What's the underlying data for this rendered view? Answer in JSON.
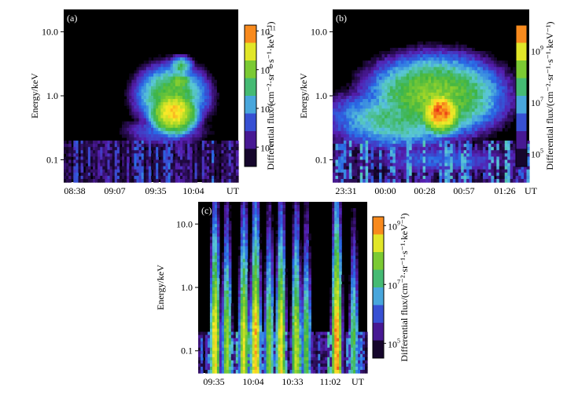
{
  "chart_data": [
    {
      "type": "heatmap",
      "panel_label": "(a)",
      "ylabel": "Energy/keV",
      "y_ticks": [
        "0.1",
        "1.0",
        "10.0"
      ],
      "y_tick_values": [
        0.1,
        1.0,
        10.0
      ],
      "ylim_log10": [
        -1.35,
        1.35
      ],
      "x_ticks": [
        "08:38",
        "09:07",
        "09:35",
        "10:04"
      ],
      "x_unit": "UT",
      "colorbar_label": "Differential flux/(cm⁻²·sr⁻¹·s⁻¹·keV⁻¹)",
      "colorbar_ticks": [
        {
          "base": "10",
          "exp": "5"
        },
        {
          "base": "10",
          "exp": "7"
        },
        {
          "base": "10",
          "exp": "9"
        },
        {
          "base": "10",
          "exp": "11"
        }
      ],
      "colorbar_range_log10": [
        4,
        11.3
      ],
      "features": [
        {
          "kind": "blob",
          "x_frac": 0.63,
          "y_log10": -0.25,
          "sx": 0.1,
          "sy": 0.26,
          "peak": 10.4
        },
        {
          "kind": "blob",
          "x_frac": 0.62,
          "y_log10": 0.0,
          "sx": 0.16,
          "sy": 0.38,
          "peak": 8.8
        },
        {
          "kind": "blob",
          "x_frac": 0.66,
          "y_log10": 0.22,
          "sx": 0.07,
          "sy": 0.12,
          "peak": 9.2
        },
        {
          "kind": "blob",
          "x_frac": 0.67,
          "y_log10": 0.45,
          "sx": 0.06,
          "sy": 0.14,
          "peak": 8.2
        },
        {
          "kind": "blob",
          "x_frac": 0.58,
          "y_log10": -0.55,
          "sx": 0.22,
          "sy": 0.22,
          "peak": 6.6
        }
      ]
    },
    {
      "type": "heatmap",
      "panel_label": "(b)",
      "ylabel": "Energy/keV",
      "y_ticks": [
        "0.1",
        "1.0",
        "10.0"
      ],
      "y_tick_values": [
        0.1,
        1.0,
        10.0
      ],
      "ylim_log10": [
        -1.35,
        1.35
      ],
      "x_ticks": [
        "23:31",
        "00:00",
        "00:28",
        "00:57",
        "01:26"
      ],
      "x_unit": "UT",
      "colorbar_label": "Differential flux/(cm⁻²·sr⁻¹·s⁻¹·keV⁻¹)",
      "colorbar_ticks": [
        {
          "base": "10",
          "exp": "5"
        },
        {
          "base": "10",
          "exp": "7"
        },
        {
          "base": "10",
          "exp": "9"
        }
      ],
      "colorbar_range_log10": [
        4.5,
        10
      ],
      "features": [
        {
          "kind": "blob",
          "x_frac": 0.55,
          "y_log10": -0.25,
          "sx": 0.09,
          "sy": 0.28,
          "peak": 9.8
        },
        {
          "kind": "blob",
          "x_frac": 0.52,
          "y_log10": 0.0,
          "sx": 0.3,
          "sy": 0.55,
          "peak": 8.4
        },
        {
          "kind": "blob",
          "x_frac": 0.35,
          "y_log10": -0.35,
          "sx": 0.35,
          "sy": 0.45,
          "peak": 7.6
        },
        {
          "kind": "blob",
          "x_frac": 0.55,
          "y_log10": -1.0,
          "sx": 0.4,
          "sy": 0.25,
          "peak": 6.4
        }
      ]
    },
    {
      "type": "heatmap",
      "panel_label": "(c)",
      "ylabel": "Energy/keV",
      "y_ticks": [
        "0.1",
        "1.0",
        "10.0"
      ],
      "y_tick_values": [
        0.1,
        1.0,
        10.0
      ],
      "ylim_log10": [
        -1.35,
        1.35
      ],
      "x_ticks": [
        "09:35",
        "10:04",
        "10:33",
        "11:02"
      ],
      "x_unit": "UT",
      "colorbar_label": "Differential flux/(cm⁻²·sr⁻¹·s⁻¹·keV⁻¹)",
      "colorbar_ticks": [
        {
          "base": "10",
          "exp": "5"
        },
        {
          "base": "10",
          "exp": "7"
        },
        {
          "base": "10",
          "exp": "9"
        }
      ],
      "colorbar_range_log10": [
        4.5,
        9.3
      ],
      "features": [
        {
          "kind": "spike",
          "x_frac": 0.1,
          "peak": 8.6
        },
        {
          "kind": "spike",
          "x_frac": 0.17,
          "peak": 8.0
        },
        {
          "kind": "spike",
          "x_frac": 0.27,
          "peak": 8.4
        },
        {
          "kind": "spike",
          "x_frac": 0.34,
          "peak": 8.8
        },
        {
          "kind": "spike",
          "x_frac": 0.42,
          "peak": 7.8
        },
        {
          "kind": "spike",
          "x_frac": 0.49,
          "peak": 8.5
        },
        {
          "kind": "spike",
          "x_frac": 0.58,
          "peak": 8.2
        },
        {
          "kind": "spike",
          "x_frac": 0.64,
          "peak": 7.6
        },
        {
          "kind": "spike",
          "x_frac": 0.82,
          "peak": 9.0
        },
        {
          "kind": "spike",
          "x_frac": 0.92,
          "peak": 7.4
        }
      ]
    }
  ]
}
